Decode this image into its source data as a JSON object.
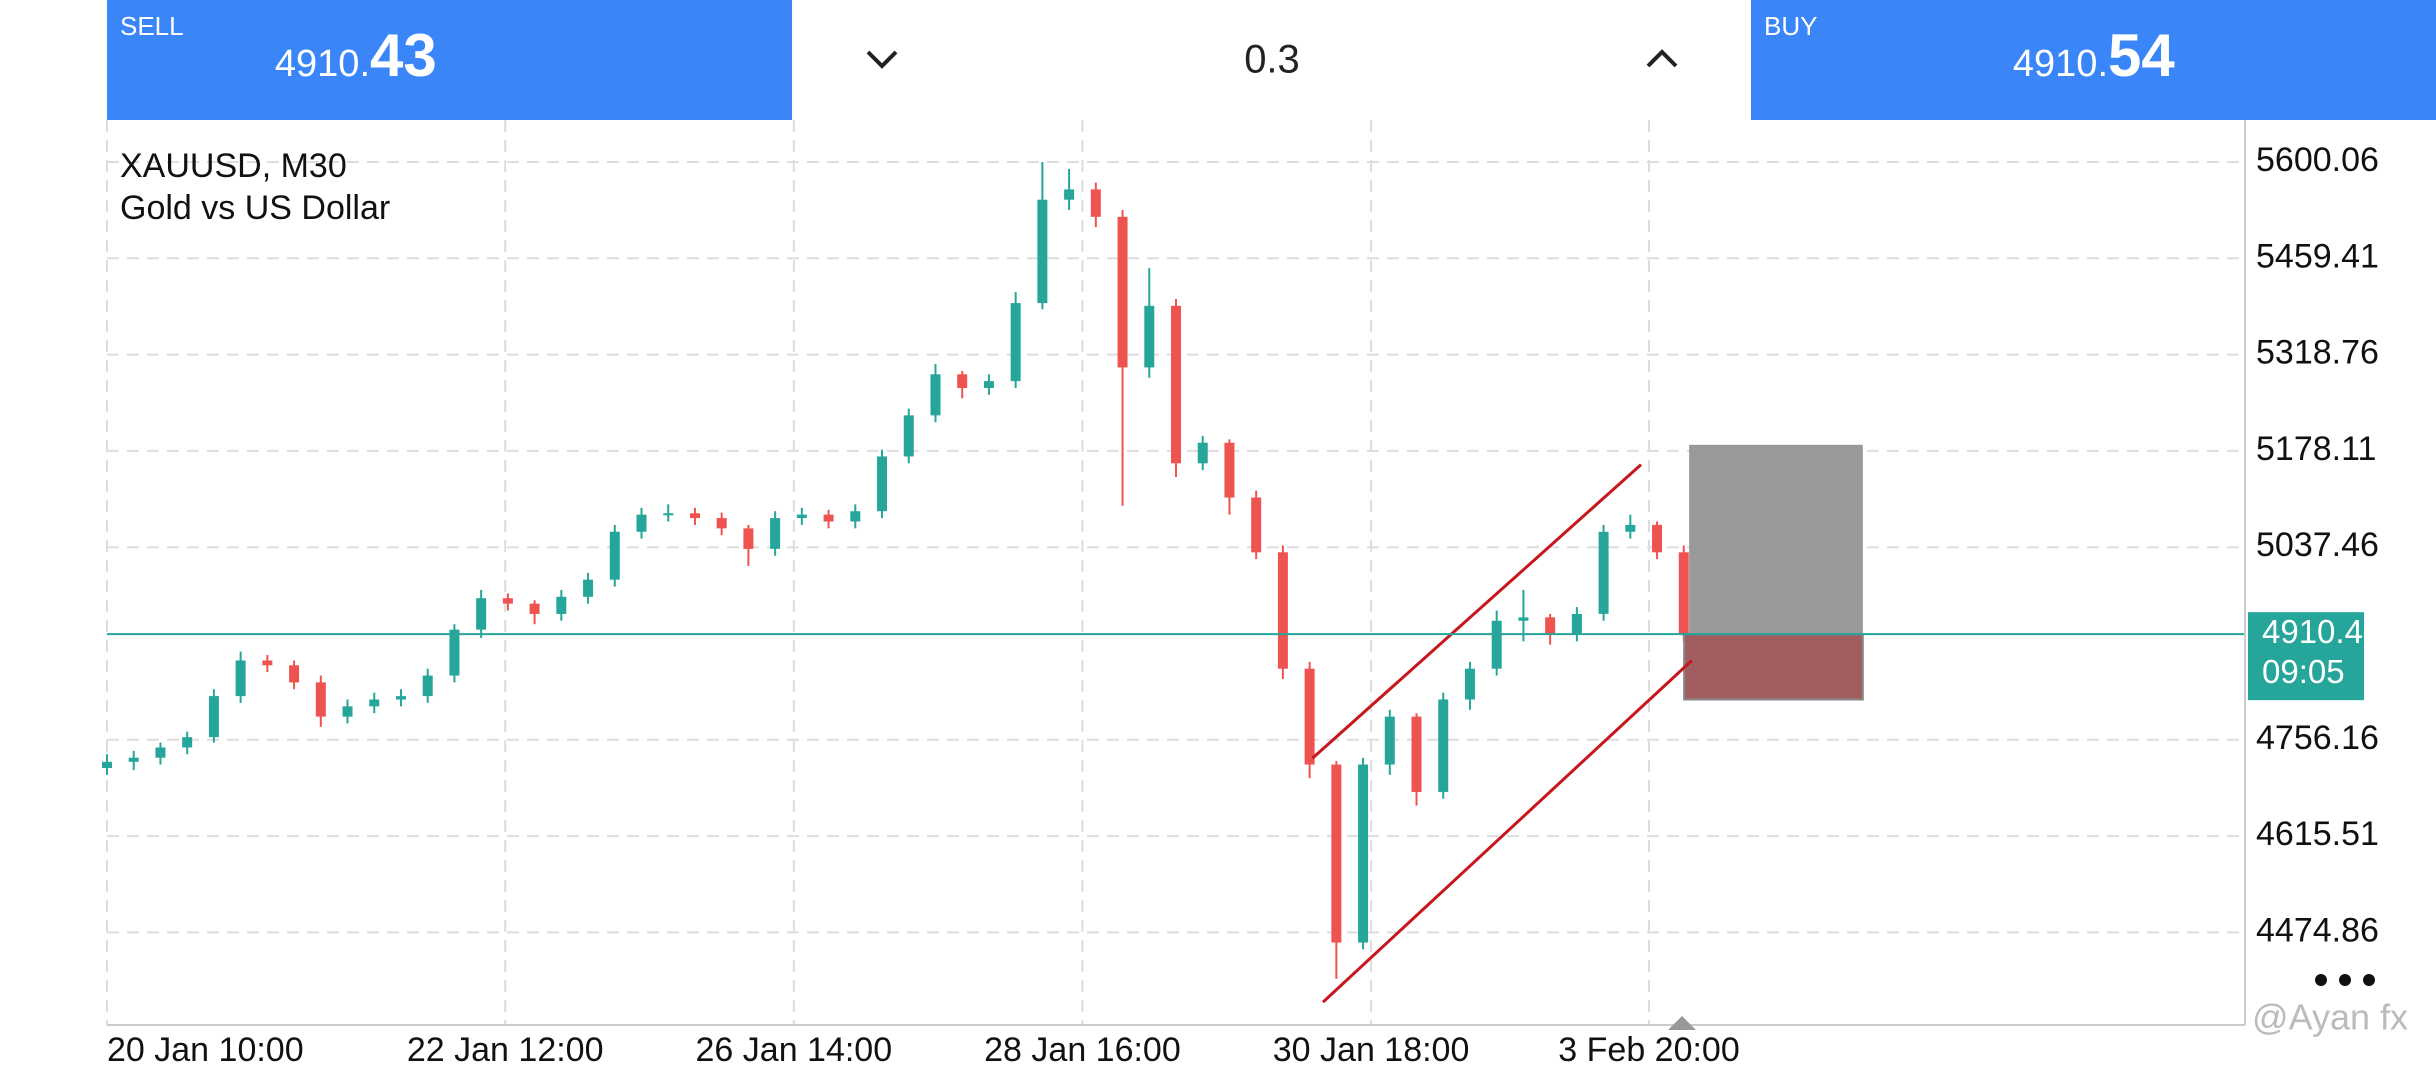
{
  "trade_bar": {
    "sell": {
      "label": "SELL",
      "price_main": "4910.",
      "price_big": "43"
    },
    "volume": "0.3",
    "buy": {
      "label": "BUY",
      "price_main": "4910.",
      "price_big": "54"
    }
  },
  "watermark": "@Ayan fx",
  "chart_data": {
    "type": "candlestick",
    "title": "XAUUSD, M30",
    "subtitle": "Gold vs US Dollar",
    "open": [
      4715,
      4724,
      4730,
      4745,
      4760,
      4820,
      4872,
      4865,
      4840,
      4790,
      4805,
      4815,
      4820,
      4850,
      4917,
      4963,
      4955,
      4940,
      4965,
      4990,
      5060,
      5085,
      5087,
      5080,
      5065,
      5035,
      5080,
      5085,
      5075,
      5090,
      5170,
      5230,
      5290,
      5270,
      5280,
      5394,
      5545,
      5560,
      5520,
      5300,
      5390,
      5160,
      5190,
      5110,
      5030,
      4860,
      4720,
      4460,
      4720,
      4790,
      4680,
      4815,
      4860,
      4930,
      4935,
      4910,
      4940,
      5060,
      5070,
      5030
    ],
    "high": [
      4735,
      4740,
      4752,
      4768,
      4830,
      4885,
      4880,
      4872,
      4850,
      4815,
      4825,
      4830,
      4860,
      4925,
      4975,
      4970,
      4960,
      4975,
      5000,
      5070,
      5095,
      5100,
      5095,
      5088,
      5070,
      5090,
      5095,
      5092,
      5100,
      5180,
      5240,
      5305,
      5295,
      5290,
      5410,
      5600,
      5590,
      5570,
      5530,
      5445,
      5400,
      5200,
      5195,
      5120,
      5040,
      4870,
      4725,
      4730,
      4800,
      4795,
      4825,
      4870,
      4945,
      4975,
      4940,
      4950,
      5070,
      5085,
      5075,
      5040
    ],
    "low": [
      4705,
      4712,
      4720,
      4735,
      4752,
      4810,
      4855,
      4830,
      4775,
      4780,
      4795,
      4805,
      4810,
      4840,
      4905,
      4945,
      4925,
      4930,
      4955,
      4980,
      5050,
      5075,
      5070,
      5055,
      5010,
      5025,
      5070,
      5065,
      5065,
      5080,
      5160,
      5220,
      5255,
      5260,
      5270,
      5385,
      5530,
      5505,
      5098,
      5285,
      5140,
      5150,
      5085,
      5020,
      4845,
      4700,
      4407,
      4450,
      4705,
      4660,
      4670,
      4800,
      4850,
      4900,
      4895,
      4900,
      4930,
      5050,
      5020,
      4900
    ],
    "close": [
      4724,
      4730,
      4745,
      4760,
      4820,
      4872,
      4865,
      4840,
      4790,
      4805,
      4815,
      4820,
      4850,
      4917,
      4963,
      4955,
      4940,
      4965,
      4990,
      5060,
      5085,
      5087,
      5080,
      5065,
      5035,
      5080,
      5085,
      5075,
      5090,
      5170,
      5230,
      5290,
      5270,
      5280,
      5394,
      5545,
      5560,
      5520,
      5300,
      5390,
      5160,
      5190,
      5110,
      5030,
      4860,
      4720,
      4460,
      4720,
      4790,
      4680,
      4815,
      4860,
      4930,
      4935,
      4910,
      4940,
      5060,
      5070,
      5030,
      4910.43
    ],
    "up_color": "#26a69a",
    "down_color": "#ef5350",
    "xlim": [
      0,
      80
    ],
    "xticks": [
      {
        "value": 0,
        "label": "20 Jan 10:00"
      },
      {
        "value": 14.9,
        "label": "22 Jan 12:00"
      },
      {
        "value": 25.7,
        "label": "26 Jan 14:00"
      },
      {
        "value": 36.5,
        "label": "28 Jan 16:00"
      },
      {
        "value": 47.3,
        "label": "30 Jan 18:00"
      },
      {
        "value": 57.7,
        "label": "3 Feb 20:00"
      }
    ],
    "ylim": [
      4339.6,
      5661.4
    ],
    "yticks": [
      5600.06,
      5459.41,
      5318.76,
      5178.11,
      5037.46,
      4756.16,
      4615.51,
      4474.86
    ],
    "grid": true,
    "last_price": 4910.43,
    "last_time": "09:05",
    "last_color": "#26a69a",
    "channel_lines": [
      {
        "x": [
          45.1,
          57.4
        ],
        "y": [
          4729,
          5158
        ]
      },
      {
        "x": [
          45.5,
          59.3
        ],
        "y": [
          4373,
          4872
        ]
      }
    ],
    "channel_color": "#c8161d",
    "position_box": {
      "x": [
        59.2,
        65.7
      ],
      "target": 5187,
      "entry": 4910.43,
      "stop": 4815
    }
  }
}
